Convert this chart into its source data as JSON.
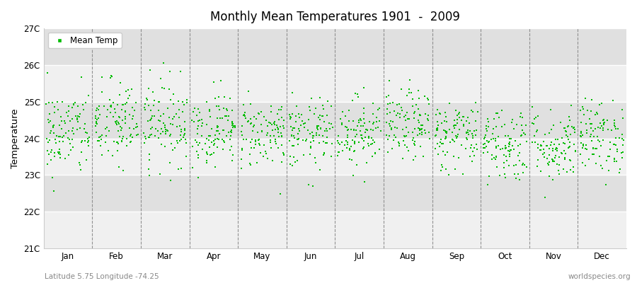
{
  "title": "Monthly Mean Temperatures 1901  -  2009",
  "ylabel": "Temperature",
  "xlabel_bottom_left": "Latitude 5.75 Longitude -74.25",
  "xlabel_bottom_right": "worldspecies.org",
  "legend_label": "Mean Temp",
  "dot_color": "#00bb00",
  "dot_size": 3,
  "ylim": [
    21,
    27
  ],
  "yticks": [
    21,
    22,
    23,
    24,
    25,
    26,
    27
  ],
  "ytick_labels": [
    "21C",
    "22C",
    "23C",
    "24C",
    "25C",
    "26C",
    "27C"
  ],
  "months": [
    "Jan",
    "Feb",
    "Mar",
    "Apr",
    "May",
    "Jun",
    "Jul",
    "Aug",
    "Sep",
    "Oct",
    "Nov",
    "Dec"
  ],
  "fig_bg_color": "#ffffff",
  "plot_bg_color_light": "#f0f0f0",
  "plot_bg_color_dark": "#e0e0e0",
  "dashed_line_color": "#888888",
  "num_years": 109,
  "seed": 42,
  "mean_temps": [
    24.15,
    24.4,
    24.45,
    24.25,
    24.15,
    24.1,
    24.2,
    24.35,
    24.1,
    23.85,
    23.8,
    24.05
  ],
  "std_temps": [
    0.6,
    0.6,
    0.58,
    0.5,
    0.48,
    0.48,
    0.48,
    0.48,
    0.48,
    0.52,
    0.5,
    0.5
  ]
}
